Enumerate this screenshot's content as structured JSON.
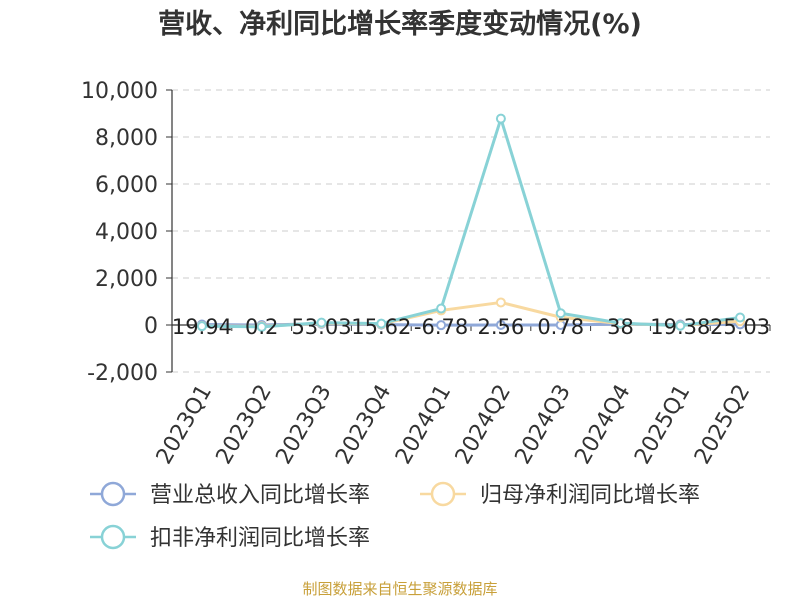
{
  "chart_data": {
    "type": "line",
    "title": "营收、净利同比增长率季度变动情况(%)",
    "categories": [
      "2023Q1",
      "2023Q2",
      "2023Q3",
      "2023Q4",
      "2024Q1",
      "2024Q2",
      "2024Q3",
      "2024Q4",
      "2025Q1",
      "2025Q2"
    ],
    "ylim": [
      -2000,
      10000
    ],
    "yticks": [
      -2000,
      0,
      2000,
      4000,
      6000,
      8000,
      10000
    ],
    "ytick_labels": [
      "-2,000",
      "0",
      "2,000",
      "4,000",
      "6,000",
      "8,000",
      "10,000"
    ],
    "grid": true,
    "legend_position": "bottom-left",
    "data_labels": [
      "19.94",
      "0.2",
      "53.03",
      "15.62",
      "-6.78",
      "2.56",
      "0.78",
      "38",
      "19.38",
      "25.03"
    ],
    "series": [
      {
        "name": "营业总收入同比增长率",
        "color": "#8fa8d8",
        "values": [
          19.94,
          0.2,
          53.03,
          15.62,
          -6.78,
          2.56,
          0.78,
          38,
          19.38,
          25.03
        ]
      },
      {
        "name": "归母净利润同比增长率",
        "color": "#f8d9a0",
        "values": [
          -40,
          -60,
          80,
          40,
          620,
          960,
          330,
          60,
          -20,
          160
        ]
      },
      {
        "name": "扣非净利润同比增长率",
        "color": "#88d2d6",
        "values": [
          -50,
          -80,
          100,
          60,
          700,
          8780,
          500,
          80,
          -30,
          320
        ]
      }
    ]
  },
  "footer": {
    "source": "制图数据来自恒生聚源数据库"
  }
}
